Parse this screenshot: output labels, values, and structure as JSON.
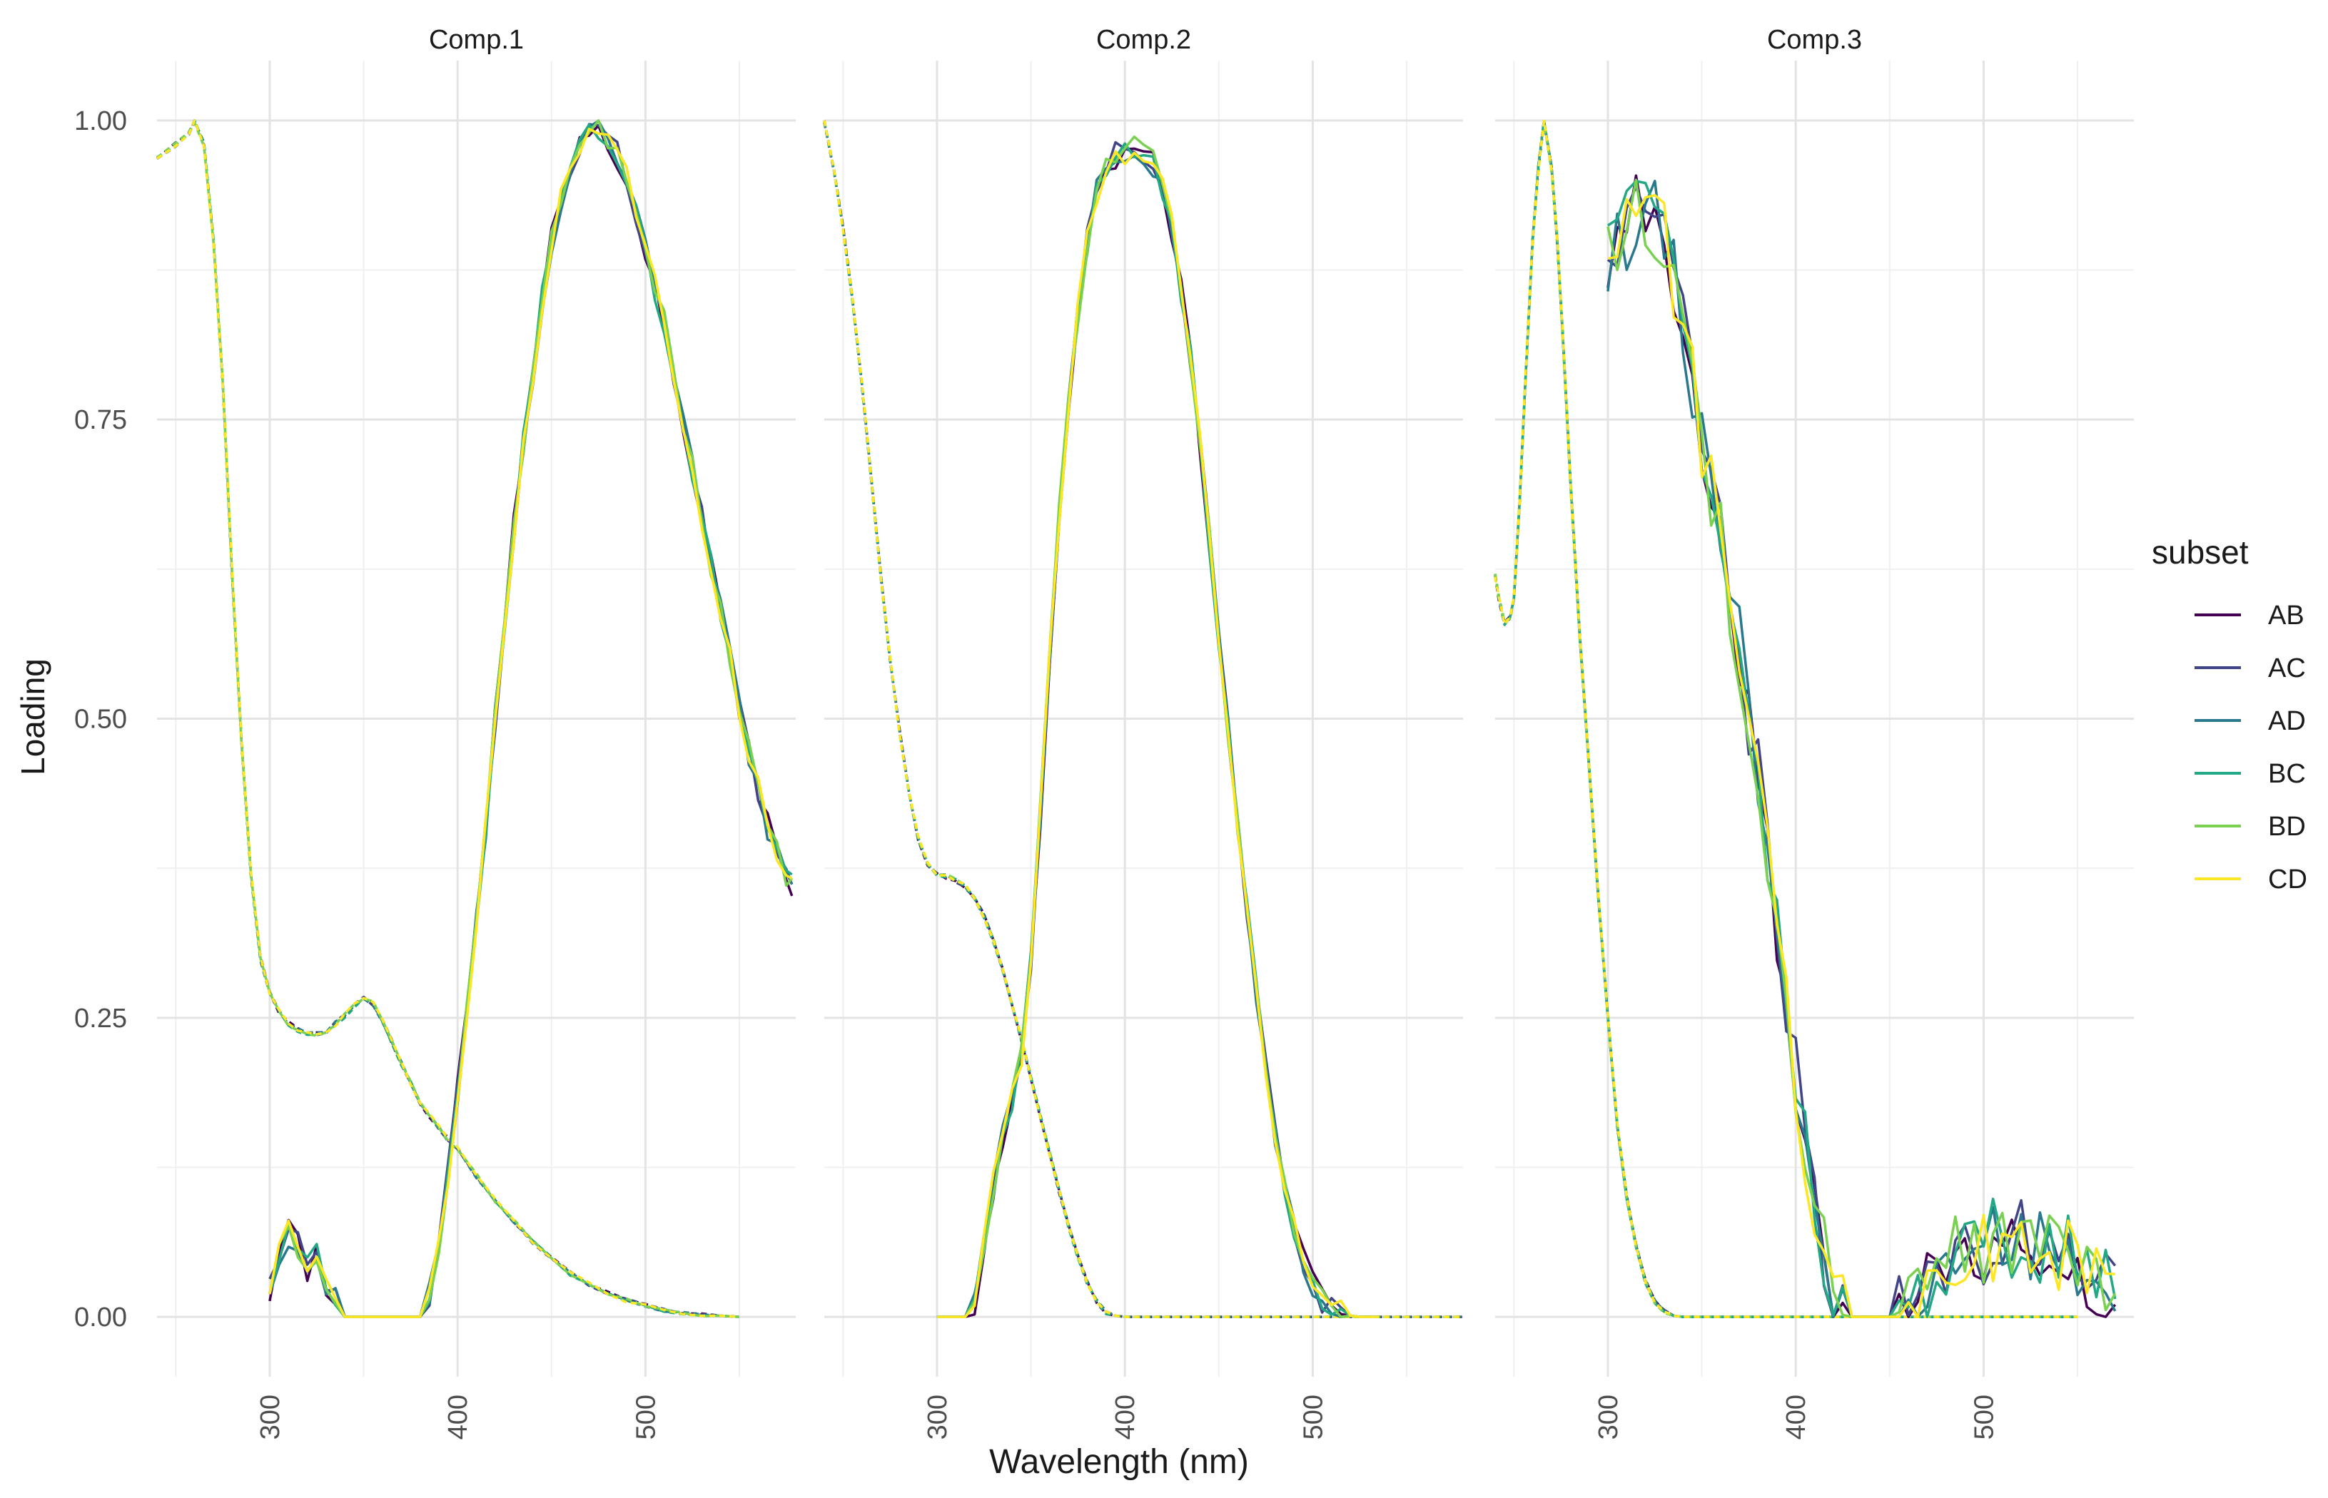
{
  "chart_data": {
    "type": "line",
    "facets": [
      "Comp.1",
      "Comp.2",
      "Comp.3"
    ],
    "xlabel": "Wavelength (nm)",
    "ylabel": "Loading",
    "xlim": [
      240,
      580
    ],
    "ylim": [
      -0.05,
      1.05
    ],
    "x_ticks": [
      300,
      400,
      500
    ],
    "x_tick_labels": [
      "300",
      "400",
      "500"
    ],
    "y_ticks": [
      0,
      0.25,
      0.5,
      0.75,
      1
    ],
    "y_tick_labels": [
      "0.00",
      "0.25",
      "0.50",
      "0.75",
      "1.00"
    ],
    "grid": true,
    "legend": {
      "title": "subset",
      "placement": "right",
      "entries": [
        "AB",
        "AC",
        "AD",
        "BC",
        "BD",
        "CD"
      ]
    },
    "colors": {
      "AB": "#440154",
      "AC": "#414487",
      "AD": "#2A788E",
      "BC": "#22A884",
      "BD": "#7AD151",
      "CD": "#FDE725"
    },
    "series_style": {
      "excitation": "dashed",
      "emission": "solid"
    },
    "panels": [
      {
        "facet": "Comp.1",
        "excitation": {
          "x": [
            240,
            250,
            257,
            260,
            265,
            270,
            275,
            280,
            285,
            290,
            295,
            300,
            305,
            310,
            315,
            320,
            325,
            330,
            335,
            340,
            345,
            350,
            355,
            360,
            365,
            370,
            375,
            380,
            385,
            390,
            395,
            400,
            410,
            420,
            430,
            440,
            450,
            460,
            470,
            480,
            490,
            500,
            510,
            520,
            530,
            540,
            550
          ],
          "y": [
            0.97,
            0.98,
            0.99,
            1.0,
            0.98,
            0.9,
            0.78,
            0.62,
            0.48,
            0.37,
            0.3,
            0.27,
            0.255,
            0.245,
            0.24,
            0.237,
            0.236,
            0.238,
            0.245,
            0.252,
            0.26,
            0.266,
            0.262,
            0.248,
            0.23,
            0.212,
            0.195,
            0.18,
            0.168,
            0.158,
            0.148,
            0.14,
            0.118,
            0.098,
            0.08,
            0.063,
            0.048,
            0.036,
            0.027,
            0.02,
            0.014,
            0.009,
            0.006,
            0.004,
            0.002,
            0.001,
            0.0
          ]
        },
        "emission": {
          "x": [
            300,
            305,
            310,
            315,
            320,
            325,
            330,
            335,
            340,
            345,
            350,
            355,
            360,
            365,
            370,
            375,
            380,
            385,
            390,
            395,
            400,
            405,
            410,
            415,
            420,
            425,
            430,
            435,
            440,
            445,
            450,
            455,
            460,
            465,
            470,
            475,
            480,
            485,
            490,
            495,
            500,
            505,
            510,
            515,
            520,
            525,
            530,
            535,
            540,
            545,
            550,
            555,
            560,
            565,
            570,
            575,
            578
          ],
          "y": [
            0.02,
            0.05,
            0.07,
            0.06,
            0.04,
            0.05,
            0.03,
            0.02,
            0.0,
            0.0,
            0.0,
            0.0,
            0.0,
            0.0,
            0.0,
            0.0,
            0.0,
            0.02,
            0.06,
            0.12,
            0.19,
            0.26,
            0.33,
            0.41,
            0.5,
            0.58,
            0.66,
            0.73,
            0.79,
            0.85,
            0.9,
            0.935,
            0.96,
            0.975,
            0.985,
            0.99,
            0.985,
            0.97,
            0.95,
            0.92,
            0.89,
            0.86,
            0.83,
            0.79,
            0.75,
            0.71,
            0.67,
            0.63,
            0.59,
            0.55,
            0.51,
            0.47,
            0.44,
            0.41,
            0.39,
            0.37,
            0.36
          ]
        }
      },
      {
        "facet": "Comp.2",
        "excitation": {
          "x": [
            240,
            245,
            250,
            255,
            260,
            265,
            270,
            275,
            280,
            285,
            290,
            295,
            300,
            305,
            310,
            315,
            320,
            325,
            330,
            335,
            340,
            345,
            350,
            355,
            360,
            365,
            370,
            375,
            380,
            385,
            390,
            395,
            400,
            410,
            420,
            430,
            440,
            450,
            460,
            470,
            480,
            490,
            500,
            510,
            520,
            530,
            540,
            550,
            560,
            570,
            580
          ],
          "y": [
            1.0,
            0.96,
            0.91,
            0.85,
            0.78,
            0.7,
            0.62,
            0.55,
            0.49,
            0.44,
            0.4,
            0.378,
            0.37,
            0.368,
            0.365,
            0.36,
            0.35,
            0.335,
            0.315,
            0.29,
            0.262,
            0.232,
            0.2,
            0.168,
            0.136,
            0.105,
            0.076,
            0.05,
            0.028,
            0.013,
            0.004,
            0.001,
            0.0,
            0.0,
            0.0,
            0.0,
            0.0,
            0.0,
            0.0,
            0.0,
            0.0,
            0.0,
            0.0,
            0.0,
            0.0,
            0.0,
            0.0,
            0.0,
            0.0,
            0.0,
            0.0
          ]
        },
        "emission": {
          "x": [
            300,
            305,
            310,
            315,
            320,
            325,
            330,
            335,
            340,
            345,
            350,
            355,
            360,
            365,
            370,
            375,
            380,
            385,
            390,
            395,
            400,
            405,
            410,
            415,
            420,
            425,
            430,
            435,
            440,
            445,
            450,
            455,
            460,
            465,
            470,
            475,
            480,
            485,
            490,
            495,
            500,
            505,
            510,
            515,
            520,
            525,
            530,
            535
          ],
          "y": [
            0.0,
            0.0,
            0.0,
            0.0,
            0.01,
            0.06,
            0.11,
            0.15,
            0.18,
            0.22,
            0.3,
            0.42,
            0.55,
            0.67,
            0.76,
            0.84,
            0.9,
            0.94,
            0.96,
            0.97,
            0.975,
            0.98,
            0.975,
            0.965,
            0.945,
            0.91,
            0.86,
            0.8,
            0.73,
            0.65,
            0.57,
            0.49,
            0.41,
            0.34,
            0.27,
            0.21,
            0.155,
            0.11,
            0.075,
            0.048,
            0.028,
            0.015,
            0.007,
            0.003,
            0.001,
            0.0,
            0.0,
            0.0
          ]
        }
      },
      {
        "facet": "Comp.3",
        "excitation": {
          "x": [
            240,
            242,
            245,
            248,
            250,
            253,
            256,
            260,
            263,
            266,
            270,
            273,
            276,
            280,
            285,
            290,
            295,
            300,
            305,
            310,
            315,
            320,
            325,
            330,
            335,
            340,
            345,
            350,
            360,
            370,
            380,
            390,
            400,
            420,
            440,
            460,
            480,
            500,
            520,
            540,
            550
          ],
          "y": [
            0.62,
            0.6,
            0.58,
            0.585,
            0.6,
            0.68,
            0.78,
            0.9,
            0.96,
            1.0,
            0.96,
            0.9,
            0.82,
            0.7,
            0.57,
            0.46,
            0.35,
            0.25,
            0.16,
            0.1,
            0.06,
            0.03,
            0.012,
            0.004,
            0.001,
            0.0,
            0.0,
            0.0,
            0.0,
            0.0,
            0.0,
            0.0,
            0.0,
            0.0,
            0.0,
            0.0,
            0.0,
            0.0,
            0.0,
            0.0,
            0.0
          ]
        },
        "emission": {
          "x": [
            300,
            305,
            310,
            315,
            320,
            325,
            330,
            335,
            340,
            345,
            350,
            355,
            360,
            365,
            370,
            375,
            380,
            385,
            390,
            395,
            400,
            405,
            410,
            415,
            420,
            425,
            430,
            435,
            440,
            445,
            450,
            455,
            460,
            465,
            470,
            475,
            480,
            485,
            490,
            495,
            500,
            505,
            510,
            515,
            520,
            525,
            530,
            535,
            540,
            545,
            550,
            555,
            560,
            565,
            570
          ],
          "y": [
            0.88,
            0.9,
            0.91,
            0.92,
            0.93,
            0.92,
            0.9,
            0.87,
            0.83,
            0.78,
            0.73,
            0.69,
            0.65,
            0.6,
            0.56,
            0.5,
            0.45,
            0.39,
            0.32,
            0.26,
            0.2,
            0.14,
            0.09,
            0.05,
            0.02,
            0.005,
            0.0,
            0.0,
            0.0,
            0.0,
            0.0,
            0.005,
            0.01,
            0.02,
            0.03,
            0.04,
            0.048,
            0.055,
            0.058,
            0.06,
            0.062,
            0.064,
            0.065,
            0.066,
            0.066,
            0.065,
            0.063,
            0.06,
            0.055,
            0.05,
            0.045,
            0.038,
            0.032,
            0.025,
            0.02
          ]
        }
      }
    ]
  }
}
